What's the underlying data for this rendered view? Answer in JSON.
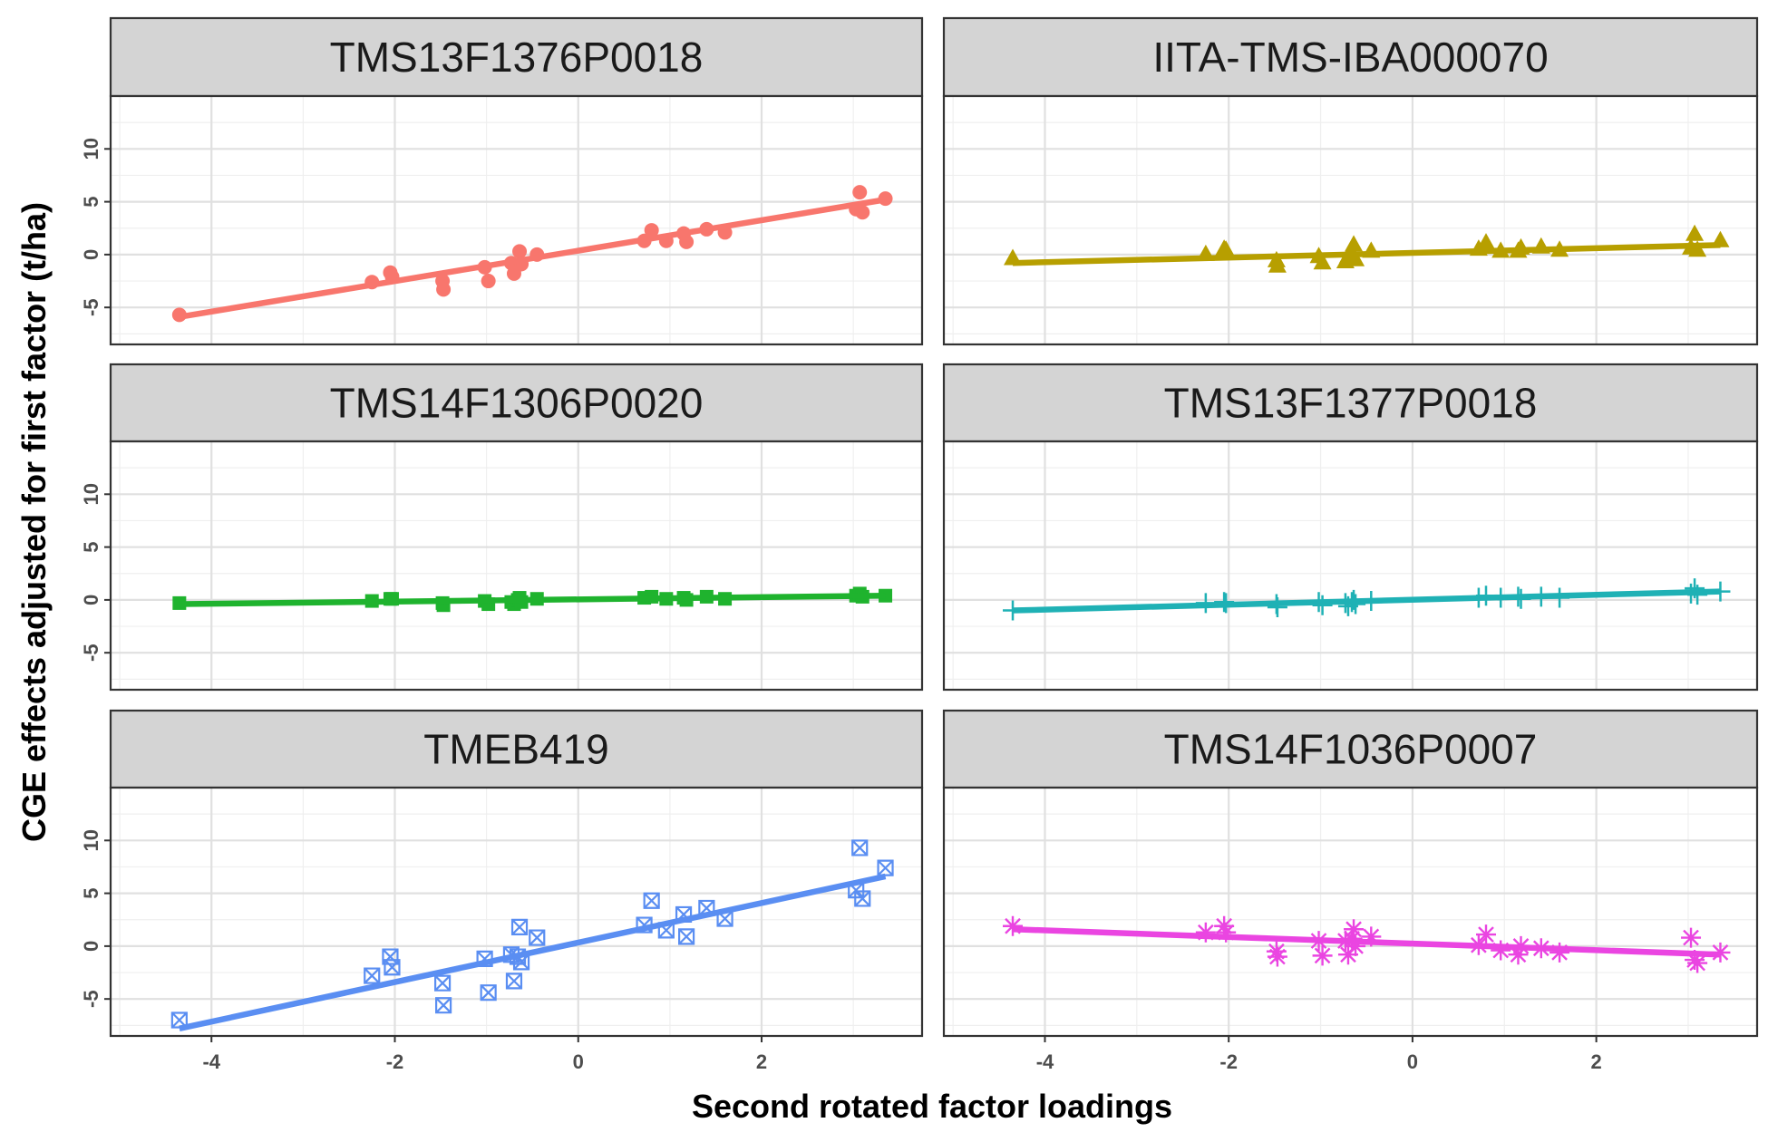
{
  "chart_data": {
    "type": "scatter",
    "xlabel": "Second rotated factor loadings",
    "ylabel": "CGE effects adjusted for first factor (t/ha)",
    "xlim": [
      -5.1,
      3.75
    ],
    "ylim": [
      -8.5,
      15
    ],
    "x_ticks": [
      -4,
      -2,
      0,
      2
    ],
    "x_tick_labels": [
      "-4",
      "-2",
      "0",
      "2"
    ],
    "y_ticks": [
      -5,
      0,
      5,
      10
    ],
    "y_tick_labels": [
      "-5",
      "0",
      "5",
      "10"
    ],
    "grid": true,
    "legend": "none",
    "x": [
      -4.35,
      -2.25,
      -2.05,
      -2.03,
      -1.48,
      -1.47,
      -1.02,
      -0.98,
      -0.73,
      -0.7,
      -0.66,
      -0.64,
      -0.62,
      -0.45,
      0.72,
      0.8,
      0.96,
      1.15,
      1.18,
      1.4,
      1.6,
      3.03,
      3.07,
      3.1,
      3.35
    ],
    "series": [
      {
        "name": "TMS13F1376P0018",
        "color": "#f8766d",
        "shape": "circle",
        "values": [
          -5.7,
          -2.6,
          -1.7,
          -2.1,
          -2.5,
          -3.3,
          -1.2,
          -2.5,
          -0.8,
          -1.8,
          -1.0,
          0.3,
          -0.9,
          0.0,
          1.3,
          2.3,
          1.3,
          2.0,
          1.2,
          2.4,
          2.1,
          4.3,
          5.9,
          4.0,
          5.3
        ],
        "fit": [
          -5.9,
          5.2
        ]
      },
      {
        "name": "IITA-TMS-IBA000070",
        "color": "#b79f00",
        "shape": "triangle",
        "values": [
          -0.4,
          0.0,
          0.5,
          0.4,
          -0.6,
          -1.1,
          -0.2,
          -0.8,
          -0.7,
          -0.2,
          0.1,
          0.9,
          -0.5,
          0.3,
          0.5,
          1.1,
          0.3,
          0.3,
          0.6,
          0.7,
          0.4,
          0.6,
          1.9,
          0.4,
          1.3
        ],
        "fit": [
          -0.8,
          0.9
        ]
      },
      {
        "name": "TMS14F1306P0020",
        "color": "#1fb32e",
        "shape": "square",
        "values": [
          -0.3,
          -0.1,
          0.1,
          0.1,
          -0.3,
          -0.5,
          -0.1,
          -0.4,
          -0.2,
          -0.4,
          0.0,
          0.2,
          -0.2,
          0.1,
          0.2,
          0.3,
          0.1,
          0.2,
          0.0,
          0.3,
          0.1,
          0.4,
          0.6,
          0.3,
          0.4
        ],
        "fit": [
          -0.4,
          0.4
        ]
      },
      {
        "name": "TMS13F1377P0018",
        "color": "#1fb1b5",
        "shape": "plus",
        "values": [
          -1.0,
          -0.3,
          -0.2,
          -0.3,
          -0.4,
          -0.7,
          -0.2,
          -0.5,
          -0.3,
          -0.6,
          -0.2,
          0.0,
          -0.4,
          -0.1,
          0.2,
          0.4,
          0.2,
          0.3,
          0.1,
          0.3,
          0.2,
          0.6,
          1.1,
          0.5,
          0.8
        ],
        "fit": [
          -1.0,
          0.8
        ]
      },
      {
        "name": "TMEB419",
        "color": "#5a8ef2",
        "shape": "square-cross",
        "values": [
          -7.0,
          -2.8,
          -1.0,
          -2.0,
          -3.5,
          -5.6,
          -1.2,
          -4.4,
          -0.8,
          -3.3,
          -1.0,
          1.8,
          -1.5,
          0.8,
          2.0,
          4.3,
          1.5,
          3.0,
          0.9,
          3.6,
          2.6,
          5.3,
          9.3,
          4.5,
          7.4
        ],
        "fit": [
          -7.8,
          6.6
        ]
      },
      {
        "name": "TMS14F1036P0007",
        "color": "#ea45e1",
        "shape": "asterisk",
        "values": [
          1.9,
          1.3,
          1.9,
          1.3,
          -0.5,
          -1.0,
          0.5,
          -0.9,
          0.5,
          -0.8,
          0.7,
          1.6,
          0.0,
          0.9,
          0.1,
          1.1,
          -0.4,
          -0.8,
          0.0,
          -0.2,
          -0.6,
          0.8,
          -1.3,
          -1.6,
          -0.6
        ],
        "fit": [
          1.6,
          -0.8
        ]
      }
    ]
  }
}
